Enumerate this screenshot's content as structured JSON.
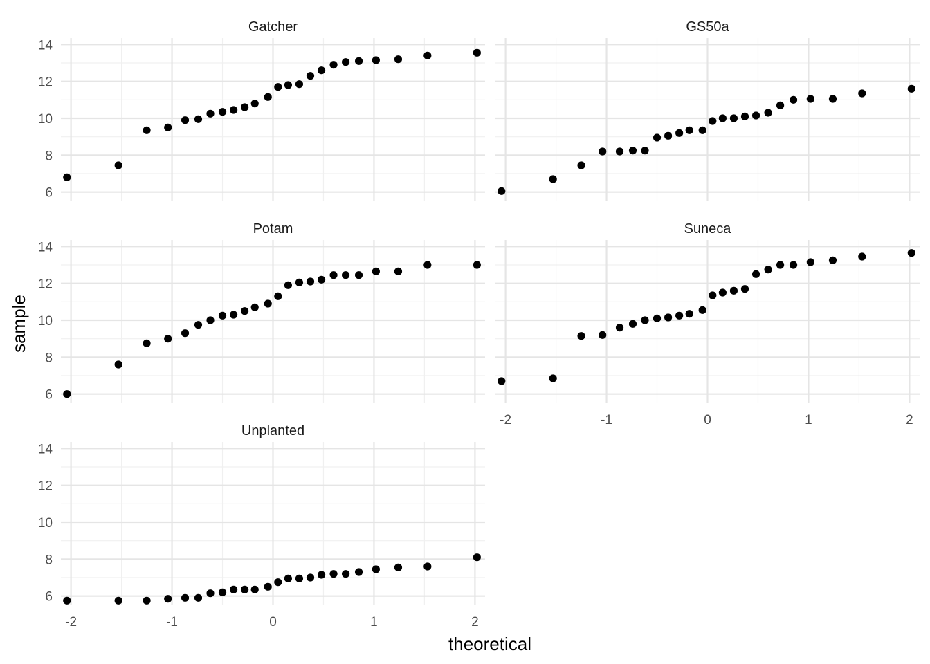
{
  "chart_data": {
    "type": "scatter",
    "layout": "facet_wrap",
    "xlabel": "theoretical",
    "ylabel": "sample",
    "xlim": [
      -2.1,
      2.1
    ],
    "ylim": [
      5.5,
      14.35
    ],
    "x_ticks": [
      -2,
      -1,
      0,
      1,
      2
    ],
    "y_ticks": [
      6,
      8,
      10,
      12,
      14
    ],
    "grid": true,
    "theoretical_quantiles": [
      -2.04,
      -1.53,
      -1.25,
      -1.04,
      -0.87,
      -0.74,
      -0.62,
      -0.5,
      -0.39,
      -0.28,
      -0.18,
      -0.05,
      0.05,
      0.15,
      0.26,
      0.37,
      0.48,
      0.6,
      0.72,
      0.85,
      1.02,
      1.24,
      1.53,
      2.02
    ],
    "panels": [
      {
        "title": "Gatcher",
        "values": [
          6.8,
          7.45,
          9.35,
          9.5,
          9.9,
          9.95,
          10.25,
          10.35,
          10.45,
          10.6,
          10.8,
          11.15,
          11.7,
          11.8,
          11.85,
          12.3,
          12.6,
          12.9,
          13.05,
          13.1,
          13.15,
          13.2,
          13.4,
          13.55
        ]
      },
      {
        "title": "GS50a",
        "values": [
          6.05,
          6.7,
          7.45,
          8.2,
          8.2,
          8.25,
          8.25,
          8.95,
          9.05,
          9.2,
          9.35,
          9.35,
          9.85,
          10.0,
          10.0,
          10.1,
          10.15,
          10.3,
          10.7,
          11.0,
          11.05,
          11.05,
          11.35,
          11.6
        ]
      },
      {
        "title": "Potam",
        "values": [
          6.0,
          7.6,
          8.75,
          9.0,
          9.3,
          9.75,
          10.0,
          10.25,
          10.3,
          10.5,
          10.7,
          10.9,
          11.3,
          11.9,
          12.05,
          12.1,
          12.2,
          12.45,
          12.45,
          12.45,
          12.65,
          12.65,
          13.0,
          13.0
        ]
      },
      {
        "title": "Suneca",
        "values": [
          6.7,
          6.85,
          9.15,
          9.2,
          9.6,
          9.8,
          10.0,
          10.1,
          10.15,
          10.25,
          10.35,
          10.55,
          11.35,
          11.5,
          11.6,
          11.7,
          12.5,
          12.75,
          13.0,
          13.0,
          13.15,
          13.25,
          13.45,
          13.65
        ]
      },
      {
        "title": "Unplanted",
        "values": [
          5.75,
          5.75,
          5.75,
          5.85,
          5.9,
          5.9,
          6.15,
          6.2,
          6.35,
          6.35,
          6.35,
          6.5,
          6.75,
          6.95,
          6.95,
          7.0,
          7.15,
          7.2,
          7.2,
          7.3,
          7.45,
          7.55,
          7.6,
          8.1
        ]
      }
    ]
  }
}
